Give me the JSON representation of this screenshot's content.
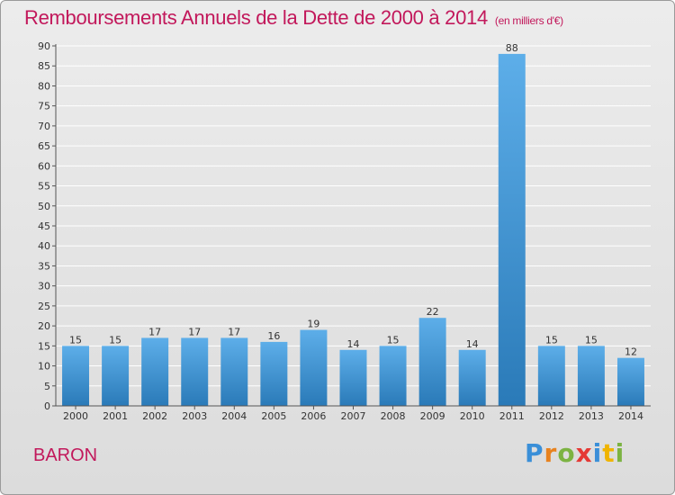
{
  "title": "Remboursements Annuels de la Dette de 2000 à 2014",
  "unit": "(en milliers d'€)",
  "commune": "BARON",
  "logo": {
    "text": "Proxiti",
    "colors": [
      "#3a8fd8",
      "#e8821e",
      "#7cb342",
      "#e53935",
      "#3a8fd8",
      "#f0b400",
      "#7cb342"
    ]
  },
  "colors": {
    "title": "#c2185b",
    "bar_top": "#5daee9",
    "bar_bottom": "#2a7ab8",
    "grid": "#ffffff"
  },
  "chart_data": {
    "type": "bar",
    "title": "Remboursements Annuels de la Dette de 2000 à 2014",
    "xlabel": "",
    "ylabel": "",
    "categories": [
      "2000",
      "2001",
      "2002",
      "2003",
      "2004",
      "2005",
      "2006",
      "2007",
      "2008",
      "2009",
      "2010",
      "2011",
      "2012",
      "2013",
      "2014"
    ],
    "values": [
      15,
      15,
      17,
      17,
      17,
      16,
      19,
      14,
      15,
      22,
      14,
      88,
      15,
      15,
      12
    ],
    "ylim": [
      0,
      90
    ],
    "yticks": [
      0,
      5,
      10,
      15,
      20,
      25,
      30,
      35,
      40,
      45,
      50,
      55,
      60,
      65,
      70,
      75,
      80,
      85,
      90
    ],
    "grid": true,
    "legend": "none"
  }
}
